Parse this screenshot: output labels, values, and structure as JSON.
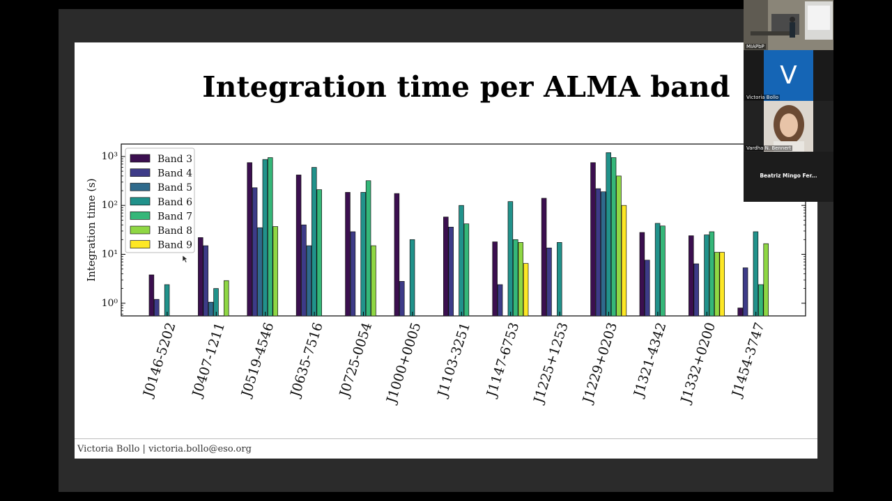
{
  "slide": {
    "title": "Integration time per ALMA band",
    "footer": "Victoria Bollo | victoria.bollo@eso.org"
  },
  "participants": [
    {
      "name": "MIAPbP"
    },
    {
      "name": "Victoria Bollo",
      "initial": "V"
    },
    {
      "name": "Vardha N. Bennert"
    },
    {
      "name": "Beatriz  Mingo  Fer..."
    }
  ],
  "colors": {
    "Band 3": "#3b0f4f",
    "Band 4": "#3d3b88",
    "Band 5": "#2f6a8c",
    "Band 6": "#21928b",
    "Band 7": "#35b779",
    "Band 8": "#8fd744",
    "Band 9": "#fde725"
  },
  "chart_data": {
    "type": "bar",
    "ylabel": "Integration time (s)",
    "yscale": "log",
    "ylim": [
      0.55,
      1800
    ],
    "yticks": [
      1,
      10,
      100,
      1000
    ],
    "ytick_labels": [
      "10⁰",
      "10¹",
      "10²",
      "10³"
    ],
    "legend_position": "top-left",
    "categories": [
      "J0146-5202",
      "J0407-1211",
      "J0519-4546",
      "J0635-7516",
      "J0725-0054",
      "J1000+0005",
      "J1103-3251",
      "J1147-6753",
      "J1225+1253",
      "J1229+0203",
      "J1321-4342",
      "J1332+0200",
      "J1454-3747"
    ],
    "series": [
      {
        "name": "Band 3",
        "values": [
          3.8,
          22,
          750,
          420,
          185,
          175,
          58,
          18,
          140,
          750,
          28,
          24,
          0.8
        ]
      },
      {
        "name": "Band 4",
        "values": [
          1.2,
          15,
          230,
          40,
          29,
          2.8,
          36,
          2.4,
          13.5,
          220,
          7.6,
          6.4,
          5.3
        ]
      },
      {
        "name": "Band 5",
        "values": [
          null,
          1.05,
          35,
          15,
          null,
          null,
          null,
          null,
          null,
          190,
          null,
          null,
          null
        ]
      },
      {
        "name": "Band 6",
        "values": [
          2.4,
          2.0,
          870,
          600,
          185,
          20,
          100,
          120,
          17.5,
          1200,
          43,
          25,
          29
        ]
      },
      {
        "name": "Band 7",
        "values": [
          null,
          null,
          950,
          210,
          320,
          null,
          42,
          20,
          null,
          950,
          38,
          29,
          2.4
        ]
      },
      {
        "name": "Band 8",
        "values": [
          null,
          2.9,
          37,
          null,
          15,
          null,
          null,
          17.5,
          null,
          400,
          null,
          11,
          16.5
        ]
      },
      {
        "name": "Band 9",
        "values": [
          null,
          null,
          null,
          null,
          null,
          null,
          null,
          6.5,
          null,
          100,
          null,
          11,
          null
        ]
      }
    ]
  }
}
